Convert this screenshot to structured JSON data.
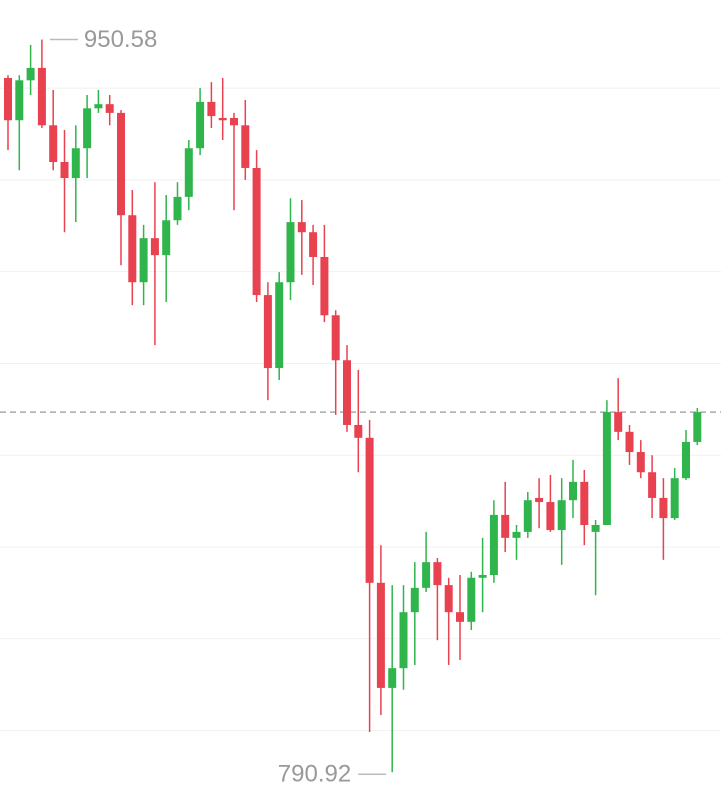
{
  "chart_data": {
    "type": "candlestick",
    "open": [
      942.2,
      933.0,
      941.7,
      944.4,
      931.9,
      923.9,
      920.4,
      926.9,
      935.6,
      936.5,
      934.6,
      912.3,
      897.7,
      907.3,
      903.6,
      911.2,
      916.3,
      926.9,
      937.0,
      933.5,
      933.5,
      931.9,
      922.6,
      894.9,
      879.0,
      897.7,
      910.8,
      908.6,
      903.2,
      890.5,
      880.7,
      866.6,
      863.8,
      832.2,
      809.3,
      813.6,
      825.8,
      831.1,
      836.7,
      831.7,
      825.8,
      823.7,
      833.3,
      833.9,
      847.0,
      842.0,
      843.3,
      850.7,
      849.8,
      843.7,
      850.2,
      854.2,
      843.3,
      844.8,
      869.4,
      865.1,
      860.7,
      856.3,
      850.7,
      846.3,
      855.0,
      862.9
    ],
    "high": [
      942.8,
      942.8,
      949.4,
      950.58,
      939.6,
      930.9,
      931.9,
      938.5,
      939.6,
      938.5,
      935.2,
      917.8,
      910.2,
      919.5,
      916.7,
      919.5,
      928.7,
      940.0,
      941.3,
      942.2,
      934.6,
      937.4,
      926.5,
      897.7,
      899.9,
      916.0,
      915.6,
      910.2,
      910.2,
      891.6,
      884.0,
      878.6,
      867.7,
      840.4,
      831.7,
      831.7,
      836.7,
      843.3,
      837.6,
      833.3,
      833.9,
      834.6,
      842.0,
      850.2,
      854.2,
      844.8,
      852.0,
      855.0,
      855.7,
      855.0,
      859.0,
      856.8,
      845.9,
      872.0,
      876.8,
      866.6,
      863.3,
      860.0,
      855.0,
      857.2,
      865.5,
      870.3
    ],
    "low": [
      926.5,
      922.1,
      938.5,
      931.3,
      922.1,
      908.6,
      910.8,
      920.4,
      934.6,
      931.9,
      901.4,
      892.7,
      892.7,
      884.0,
      893.4,
      910.2,
      913.4,
      925.4,
      931.3,
      928.7,
      913.4,
      920.0,
      893.4,
      872.0,
      876.4,
      893.8,
      899.3,
      897.1,
      889.0,
      868.8,
      865.1,
      856.3,
      799.7,
      803.4,
      790.92,
      808.9,
      814.3,
      830.2,
      819.7,
      814.3,
      815.4,
      821.9,
      825.8,
      832.2,
      838.9,
      837.2,
      842.0,
      844.1,
      843.3,
      836.1,
      846.3,
      840.4,
      829.5,
      844.8,
      863.3,
      857.9,
      855.0,
      846.3,
      837.2,
      845.9,
      854.6,
      862.2
    ],
    "close": [
      933.0,
      941.7,
      944.4,
      931.9,
      923.9,
      920.4,
      926.9,
      935.6,
      936.5,
      934.6,
      912.3,
      897.7,
      907.3,
      903.6,
      911.2,
      916.3,
      926.9,
      937.0,
      933.9,
      933.0,
      931.9,
      922.6,
      894.9,
      879.0,
      897.7,
      910.8,
      908.6,
      903.2,
      890.5,
      880.7,
      866.6,
      863.8,
      832.2,
      809.3,
      813.6,
      825.8,
      831.1,
      836.7,
      831.7,
      825.8,
      823.7,
      833.3,
      833.9,
      847.0,
      842.0,
      843.3,
      850.2,
      849.8,
      843.7,
      850.2,
      854.2,
      844.8,
      844.8,
      869.4,
      865.1,
      860.7,
      856.3,
      850.7,
      846.3,
      855.0,
      862.9,
      869.4
    ],
    "up_color": "#2fb54c",
    "down_color": "#e8414f",
    "ylim": [
      786.4,
      959.2
    ],
    "yticks": [
      800,
      820,
      840,
      860,
      880,
      900,
      920,
      940
    ],
    "grid": true,
    "last_price": 869.4,
    "annotations": [
      950.58,
      790.92
    ]
  }
}
